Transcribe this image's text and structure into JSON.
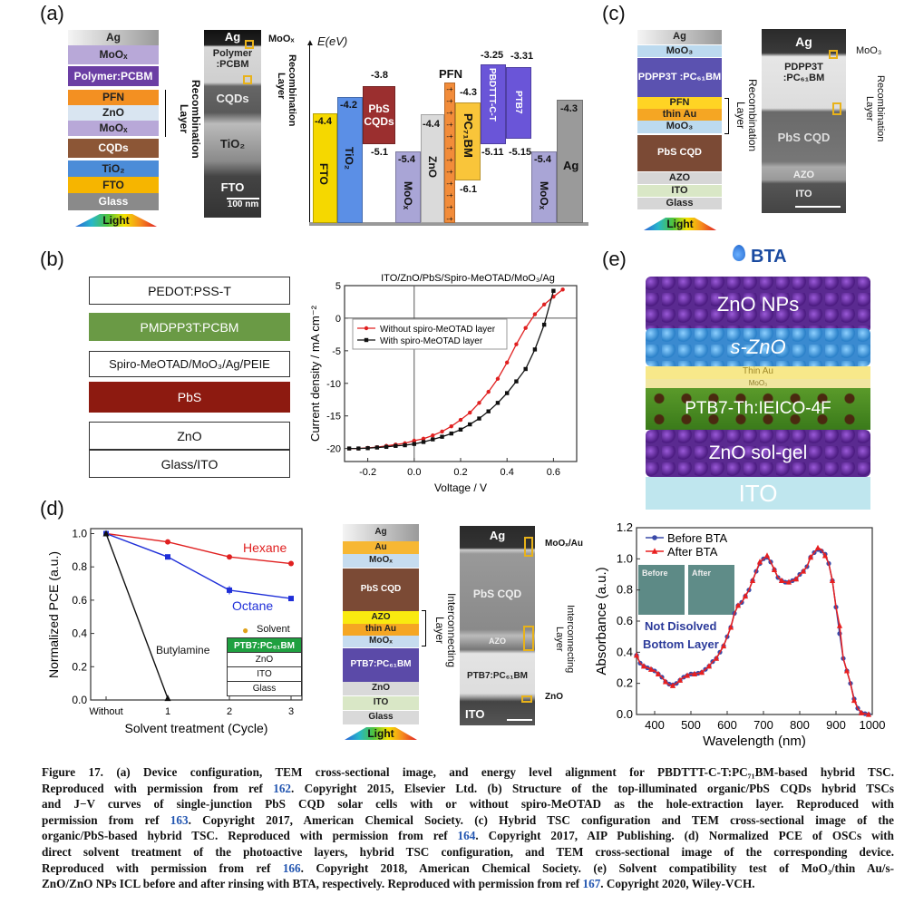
{
  "figure": {
    "panel_labels": [
      "(a)",
      "(b)",
      "(c)",
      "(d)",
      "(e)"
    ],
    "caption_lines": [
      {
        "pre": "Figure 17. (a) Device configuration, TEM cross-sectional image, and energy level alignment for PBDTTT-C-T:PC₇₁BM-based hybrid TSC.",
        "ref": "",
        "post": ""
      },
      {
        "pre": "Reproduced with permission from ref ",
        "ref": "162",
        "post": ". Copyright 2015, Elsevier Ltd. (b) Structure of the top-illuminated organic/PbS CQDs hybrid TSCs"
      },
      {
        "pre": "and J−V curves of single-junction PbS CQD solar cells with or without spiro-MeOTAD as the hole-extraction layer. Reproduced with",
        "ref": "",
        "post": ""
      },
      {
        "pre": "permission from ref ",
        "ref": "163",
        "post": ". Copyright 2017, American Chemical Society. (c) Hybrid TSC configuration and TEM cross-sectional image of the"
      },
      {
        "pre": "organic/PbS-based hybrid TSC. Reproduced with permission from ref ",
        "ref": "164",
        "post": ". Copyright 2017, AIP Publishing. (d) Normalized PCE of OSCs with"
      },
      {
        "pre": "direct solvent treatment of the photoactive layers, hybrid TSC configuration, and TEM cross-sectional image of the corresponding device.",
        "ref": "",
        "post": ""
      },
      {
        "pre": "Reproduced with permission from ref ",
        "ref": "166",
        "post": ". Copyright 2018, American Chemical Society. (e) Solvent compatibility test of MoO₃/thin Au/s-"
      },
      {
        "pre": "ZnO/ZnO NPs ICL before and after rinsing with BTA, respectively. Reproduced with permission from ref ",
        "ref": "167",
        "post": ". Copyright 2020, Wiley-VCH."
      }
    ]
  },
  "panel_a": {
    "stack": [
      {
        "label": "Ag",
        "color": "#cfcfcf"
      },
      {
        "label": "MoOₓ",
        "color": "#b8a8d8"
      },
      {
        "label": "Polymer:PCBM",
        "color": "#6b3ea4"
      },
      {
        "label": "PFN",
        "color": "#f39022"
      },
      {
        "label": "ZnO",
        "color": "#d9e5f1"
      },
      {
        "label": "MoOₓ",
        "color": "#b8a8d8"
      },
      {
        "label": "CQDs",
        "color": "#8c5636"
      },
      {
        "label": "TiO₂",
        "color": "#4b8cd8"
      },
      {
        "label": "FTO",
        "color": "#f6b500"
      },
      {
        "label": "Glass",
        "color": "#8a8a8a"
      }
    ],
    "light": "Light",
    "recombination": "Recombination Layer",
    "tem": {
      "labels": [
        "Ag",
        "Polymer :PCBM",
        "CQDs",
        "TiO₂",
        "FTO"
      ],
      "scale": "100 nm",
      "callout1": "MoOₓ",
      "callout2": "Recombination Layer"
    },
    "energy": {
      "axis_label": "E(eV)",
      "bars": [
        {
          "name": "FTO",
          "top": "-4.4",
          "bottom": ""
        },
        {
          "name": "TiO₂",
          "top": "-4.2",
          "bottom": ""
        },
        {
          "name": "PbS CQDs",
          "top": "-3.8",
          "bottom": "-5.1"
        },
        {
          "name": "MoOₓ",
          "top": "-5.4",
          "bottom": ""
        },
        {
          "name": "ZnO",
          "top": "-4.4",
          "bottom": ""
        },
        {
          "name": "PFN",
          "top": "",
          "bottom": ""
        },
        {
          "name": "PC₇₁BM",
          "top": "-4.3",
          "bottom": "-6.1"
        },
        {
          "name": "PBDTTT-C-T",
          "top": "-3.25",
          "bottom": "-5.11"
        },
        {
          "name": "PTB7",
          "top": "-3.31",
          "bottom": "-5.15"
        },
        {
          "name": "MoOₓ",
          "top": "-5.4",
          "bottom": ""
        },
        {
          "name": "Ag",
          "top": "-4.3",
          "bottom": ""
        }
      ],
      "pfn_charges": "-+ -+ -+ -+ -+ -+ -+ -+ -+ -+ -+ -+"
    }
  },
  "panel_b": {
    "stack": [
      {
        "label": "PEDOT:PSS-T",
        "color": "#ffffff"
      },
      {
        "label": "PMDPP3T:PCBM",
        "color": "#6a9a45"
      },
      {
        "label": "Spiro-MeOTAD/MoO₃/Ag/PEIE",
        "color": "#ffffff"
      },
      {
        "label": "PbS",
        "color": "#8d1a10"
      },
      {
        "label": "ZnO",
        "color": "#ffffff"
      },
      {
        "label": "Glass/ITO",
        "color": "#ffffff"
      }
    ]
  },
  "panel_c": {
    "stack": [
      {
        "label": "Ag",
        "color": "#cfcfcf"
      },
      {
        "label": "MoO₃",
        "color": "#bcdaef"
      },
      {
        "label": "PDPP3T :PC₆₁BM",
        "color": "#5b52b0"
      },
      {
        "label": "PFN",
        "color": "#ffd424"
      },
      {
        "label": "thin Au",
        "color": "#f5a623"
      },
      {
        "label": "MoO₃",
        "color": "#bcdaef"
      },
      {
        "label": "PbS CQD",
        "color": "#7b4a35"
      },
      {
        "label": "AZO",
        "color": "#d6d6d6"
      },
      {
        "label": "ITO",
        "color": "#d9e7c6"
      },
      {
        "label": "Glass",
        "color": "#d6d6d6"
      }
    ],
    "light": "Light",
    "recombination": "Recombination Layer",
    "tem": {
      "labels": [
        "Ag",
        "PDPP3T :PC₆₁BM",
        "PbS CQD",
        "AZO",
        "ITO"
      ],
      "callout1": "MoO₃",
      "callout2": "Recombination Layer"
    }
  },
  "panel_d": {
    "inset": {
      "solvent": "Solvent",
      "layers": [
        "PTB7:PC₆₁BM",
        "ZnO",
        "ITO",
        "Glass"
      ]
    },
    "stack": [
      {
        "label": "Ag",
        "color": "#cfcfcf"
      },
      {
        "label": "Au",
        "color": "#f7b733"
      },
      {
        "label": "MoOₓ",
        "color": "#c6dcef"
      },
      {
        "label": "PbS CQD",
        "color": "#7b4a35"
      },
      {
        "label": "AZO",
        "color": "#f9ea10"
      },
      {
        "label": "thin Au",
        "color": "#f5a623"
      },
      {
        "label": "MoOₓ",
        "color": "#c6dcef"
      },
      {
        "label": "PTB7:PC₆₁BM",
        "color": "#5b4aa8"
      },
      {
        "label": "ZnO",
        "color": "#d9d9d9"
      },
      {
        "label": "ITO",
        "color": "#d9e7c6"
      },
      {
        "label": "Glass",
        "color": "#d9d9d9"
      }
    ],
    "light": "Light",
    "interconnecting": "Interconnecting Layer",
    "tem": {
      "labels": [
        "Ag",
        "PbS CQD",
        "AZO",
        "PTB7:PC₆₁BM",
        "ITO"
      ],
      "callout1": "MoOₓ/Au",
      "callout2": "Interconnecting Layer",
      "callout3": "ZnO"
    }
  },
  "panel_e": {
    "drop_label": "BTA",
    "layers": [
      "ZnO NPs",
      "s-ZnO",
      "Thin Au",
      "MoO₃",
      "PTB7-Th:IEICO-4F",
      "ZnO sol-gel",
      "ITO"
    ],
    "inset_photos": [
      "Before",
      "After"
    ],
    "annotation": [
      "Not Disolved",
      "Bottom Layer"
    ]
  },
  "chart_data": [
    {
      "type": "line",
      "id": "b",
      "title": "ITO/ZnO/PbS/Spiro-MeOTAD/MoO₃/Ag",
      "xlabel": "Voltage / V",
      "ylabel": "Current density / mA cm⁻²",
      "xlim": [
        -0.3,
        0.7
      ],
      "ylim": [
        -22,
        5
      ],
      "xticks": [
        -0.2,
        0.0,
        0.2,
        0.4,
        0.6
      ],
      "xticklabels": [
        "-0.2",
        "0.0",
        "0.2",
        "0.4",
        "0.6"
      ],
      "yticks": [
        5,
        0,
        -5,
        -10,
        -15,
        -20
      ],
      "yticklabels": [
        "5",
        "0",
        "-5",
        "-10",
        "-15",
        "-20"
      ],
      "legend_position": "upper-left",
      "x": [
        -0.28,
        -0.24,
        -0.2,
        -0.16,
        -0.12,
        -0.08,
        -0.04,
        0,
        0.04,
        0.08,
        0.12,
        0.16,
        0.2,
        0.24,
        0.28,
        0.32,
        0.36,
        0.4,
        0.44,
        0.48,
        0.52,
        0.56,
        0.6,
        0.64
      ],
      "series": [
        {
          "name": "Without spiro-MeOTAD layer",
          "color": "#e02020",
          "marker": "circle",
          "values": [
            -20,
            -20,
            -19.9,
            -19.8,
            -19.6,
            -19.4,
            -19.2,
            -18.8,
            -18.5,
            -18.0,
            -17.4,
            -16.6,
            -15.6,
            -14.5,
            -13.0,
            -11.3,
            -9.3,
            -6.8,
            -4.0,
            -1.5,
            0.6,
            2.1,
            3.3,
            4.4
          ]
        },
        {
          "name": "With spiro-MeOTAD layer",
          "color": "#111111",
          "marker": "square",
          "values": [
            -20,
            -20,
            -19.95,
            -19.85,
            -19.75,
            -19.6,
            -19.5,
            -19.3,
            -19.0,
            -18.6,
            -18.2,
            -17.7,
            -17.1,
            -16.3,
            -15.4,
            -14.3,
            -13.0,
            -11.5,
            -9.7,
            -7.8,
            -4.8,
            -1.0,
            4.2,
            null
          ]
        }
      ]
    },
    {
      "type": "line",
      "id": "d",
      "xlabel": "Solvent treatment (Cycle)",
      "ylabel": "Normalized PCE (a.u.)",
      "categories": [
        "Without",
        "1",
        "2",
        "3"
      ],
      "ylim": [
        0,
        1.03
      ],
      "yticks": [
        0,
        0.2,
        0.4,
        0.6,
        0.8,
        1.0
      ],
      "yticklabels": [
        "0.0",
        "0.2",
        "0.4",
        "0.6",
        "0.8",
        "1.0"
      ],
      "series": [
        {
          "name": "Hexane",
          "color": "#e02020",
          "marker": "circle",
          "values": [
            1.0,
            0.95,
            0.86,
            0.82
          ],
          "errors": [
            0,
            0.01,
            0.015,
            0.015
          ]
        },
        {
          "name": "Octane",
          "color": "#1f2fd8",
          "marker": "square",
          "values": [
            1.0,
            0.86,
            0.66,
            0.61
          ],
          "errors": [
            0,
            0.015,
            0.025,
            0.01
          ]
        },
        {
          "name": "Butylamine",
          "color": "#111111",
          "marker": "triangle",
          "values": [
            1.0,
            0.01,
            null,
            null
          ],
          "errors": [
            0,
            0,
            0,
            0
          ]
        }
      ]
    },
    {
      "type": "line",
      "id": "e",
      "xlabel": "Wavelength (nm)",
      "ylabel": "Absorbance (a.u.)",
      "xlim": [
        350,
        1000
      ],
      "ylim": [
        0,
        1.2
      ],
      "xticks": [
        400,
        500,
        600,
        700,
        800,
        900,
        1000
      ],
      "xticklabels": [
        "400",
        "500",
        "600",
        "700",
        "800",
        "900",
        "1000"
      ],
      "yticks": [
        0,
        0.2,
        0.4,
        0.6,
        0.8,
        1.0,
        1.2
      ],
      "yticklabels": [
        "0.0",
        "0.2",
        "0.4",
        "0.6",
        "0.8",
        "1.0",
        "1.2"
      ],
      "legend_position": "upper-left",
      "x": [
        350,
        360,
        370,
        380,
        390,
        400,
        410,
        420,
        430,
        440,
        450,
        460,
        470,
        480,
        490,
        500,
        510,
        520,
        530,
        540,
        550,
        560,
        570,
        580,
        590,
        600,
        610,
        620,
        630,
        640,
        650,
        660,
        670,
        680,
        690,
        700,
        710,
        720,
        730,
        740,
        750,
        760,
        770,
        780,
        790,
        800,
        810,
        820,
        830,
        840,
        850,
        860,
        870,
        880,
        890,
        900,
        910,
        920,
        930,
        940,
        950,
        960,
        970,
        980,
        990
      ],
      "series": [
        {
          "name": "Before BTA",
          "color": "#3a4aa8",
          "marker": "circle",
          "values": [
            0.38,
            0.33,
            0.31,
            0.3,
            0.29,
            0.28,
            0.26,
            0.24,
            0.21,
            0.195,
            0.19,
            0.2,
            0.22,
            0.24,
            0.25,
            0.26,
            0.26,
            0.265,
            0.27,
            0.29,
            0.31,
            0.34,
            0.36,
            0.4,
            0.44,
            0.5,
            0.56,
            0.65,
            0.7,
            0.72,
            0.76,
            0.8,
            0.86,
            0.92,
            0.97,
            1.0,
            1.01,
            0.98,
            0.93,
            0.88,
            0.86,
            0.85,
            0.85,
            0.86,
            0.87,
            0.9,
            0.92,
            0.95,
            1.01,
            1.04,
            1.06,
            1.05,
            1.03,
            0.97,
            0.86,
            0.69,
            0.52,
            0.36,
            0.28,
            0.2,
            0.1,
            0.04,
            0.01,
            0.005,
            0.0
          ]
        },
        {
          "name": "After BTA",
          "color": "#e82020",
          "marker": "triangle",
          "values": [
            0.38,
            0.33,
            0.31,
            0.3,
            0.29,
            0.28,
            0.26,
            0.24,
            0.21,
            0.19,
            0.185,
            0.2,
            0.22,
            0.24,
            0.25,
            0.26,
            0.26,
            0.265,
            0.27,
            0.29,
            0.31,
            0.34,
            0.36,
            0.4,
            0.44,
            0.5,
            0.56,
            0.65,
            0.7,
            0.72,
            0.76,
            0.8,
            0.86,
            0.92,
            0.98,
            1.0,
            1.02,
            0.98,
            0.93,
            0.88,
            0.86,
            0.85,
            0.85,
            0.86,
            0.87,
            0.9,
            0.92,
            0.95,
            1.01,
            1.04,
            1.07,
            1.06,
            1.02,
            0.97,
            0.86,
            0.69,
            0.57,
            0.36,
            0.28,
            0.2,
            0.09,
            0.04,
            0.01,
            0.005,
            0.0
          ]
        }
      ]
    }
  ]
}
